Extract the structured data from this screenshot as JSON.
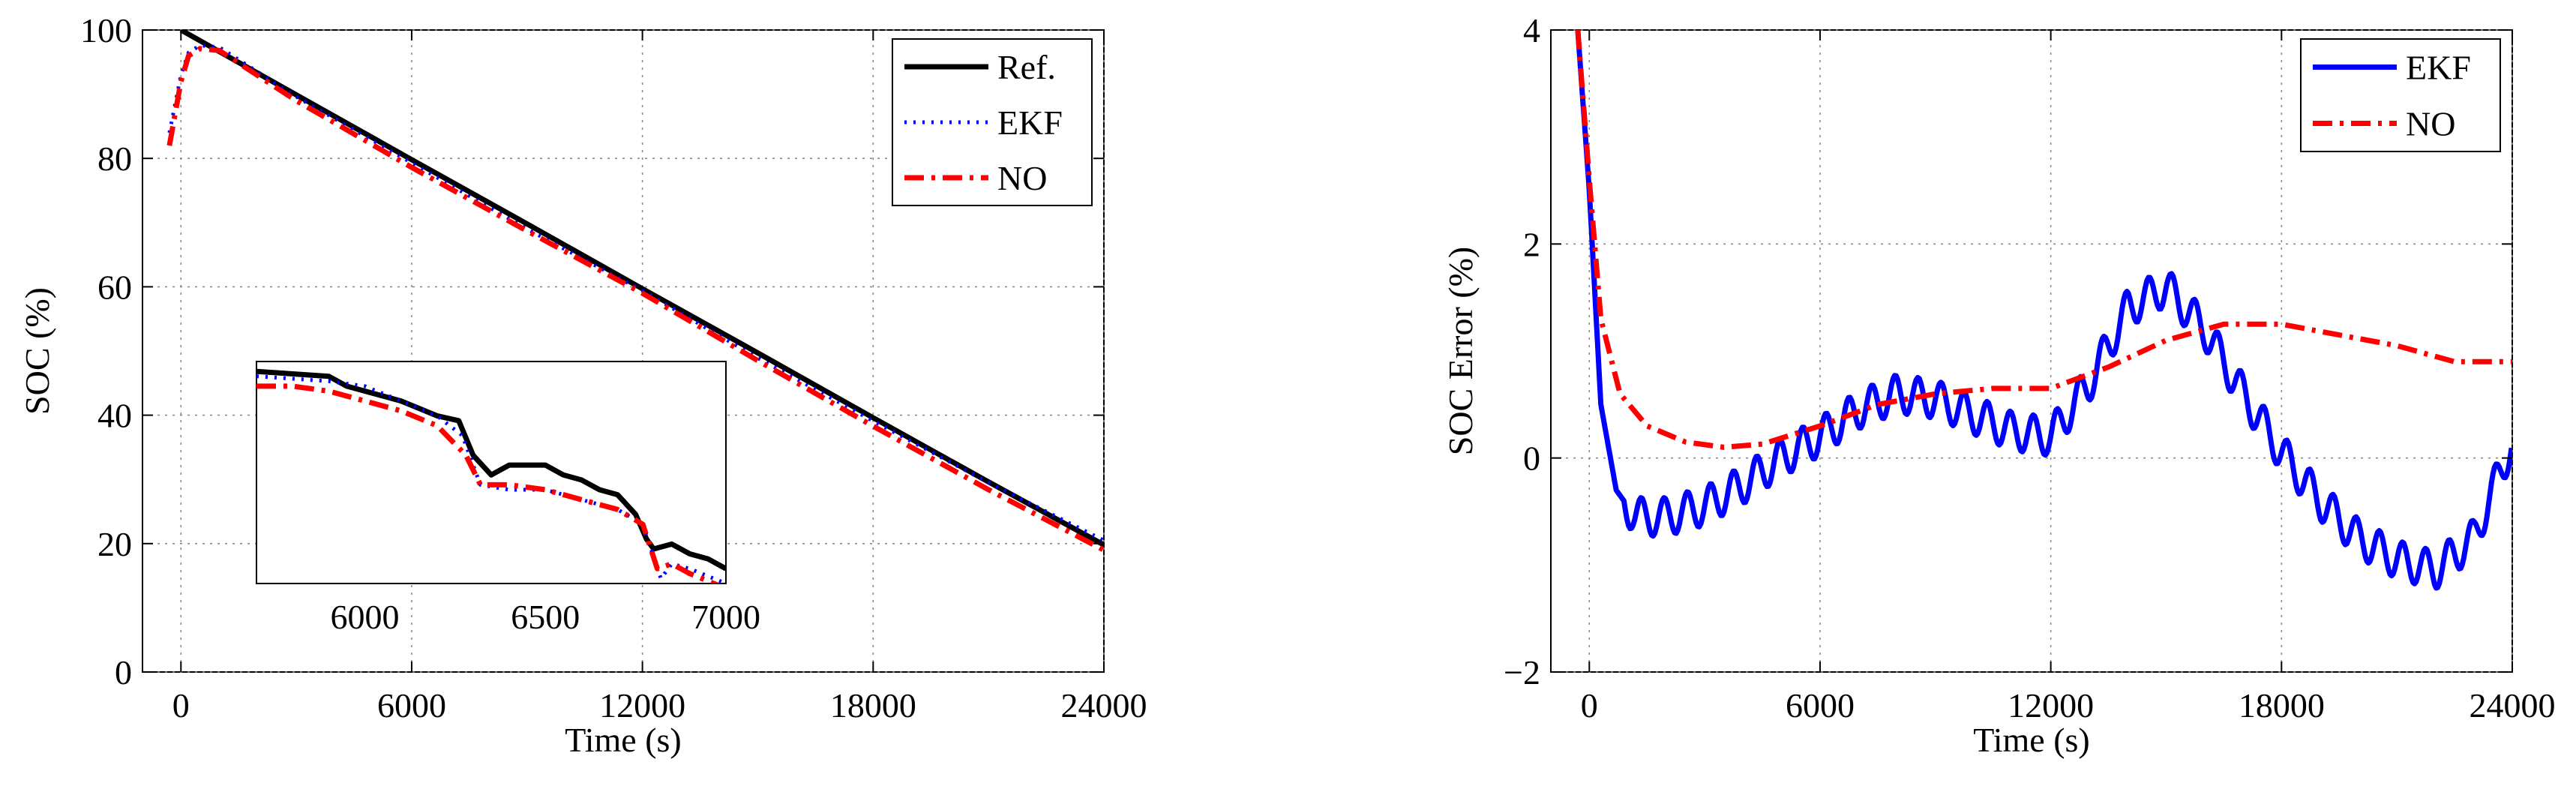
{
  "chart_data": [
    {
      "type": "line",
      "title": "",
      "xlabel": "Time (s)",
      "ylabel": "SOC (%)",
      "xlim": [
        -1000,
        24000
      ],
      "ylim": [
        0,
        100
      ],
      "xticks": [
        0,
        6000,
        12000,
        18000,
        24000
      ],
      "yticks": [
        0,
        20,
        40,
        60,
        80,
        100
      ],
      "xtick_labels": [
        "0",
        "6000",
        "12000",
        "18000",
        "24000"
      ],
      "ytick_labels": [
        "0",
        "20",
        "40",
        "60",
        "80",
        "100"
      ],
      "grid": true,
      "legend_position": "top-right",
      "series": [
        {
          "name": "Ref.",
          "color": "#000000",
          "style": "solid",
          "x": [
            0,
            3000,
            6000,
            9000,
            12000,
            15000,
            18000,
            21000,
            24000
          ],
          "y": [
            100,
            89.9,
            79.8,
            69.8,
            59.7,
            49.7,
            39.6,
            29.6,
            19.8
          ]
        },
        {
          "name": "EKF",
          "color": "#0000ff",
          "style": "dotted",
          "x": [
            -300,
            0,
            200,
            500,
            1000,
            3000,
            6000,
            9000,
            12000,
            15000,
            18000,
            21000,
            24000
          ],
          "y": [
            84,
            93,
            96.5,
            97.6,
            97.3,
            89.6,
            79.3,
            69.0,
            59.4,
            48.9,
            39.1,
            29.5,
            20.5
          ]
        },
        {
          "name": "NO",
          "color": "#ff0000",
          "style": "dashdot",
          "x": [
            -300,
            0,
            200,
            500,
            1000,
            3000,
            6000,
            9000,
            12000,
            15000,
            18000,
            21000,
            24000
          ],
          "y": [
            82,
            92,
            96,
            97.1,
            96.8,
            89.0,
            78.6,
            68.7,
            59.0,
            48.5,
            38.3,
            28.4,
            19.0
          ]
        }
      ],
      "inset": {
        "xlim": [
          5700,
          7000
        ],
        "ylim": [
          77,
          81.5
        ],
        "xticks": [
          6000,
          6500,
          7000
        ],
        "xtick_labels": [
          "6000",
          "6500",
          "7000"
        ],
        "series": [
          {
            "name": "Ref.",
            "color": "#000000",
            "x": [
              5700,
              5900,
              5950,
              6050,
              6100,
              6200,
              6260,
              6300,
              6350,
              6400,
              6500,
              6550,
              6600,
              6650,
              6700,
              6750,
              6780,
              6800,
              6850,
              6900,
              6950,
              7000
            ],
            "y": [
              81.3,
              81.2,
              81.0,
              80.8,
              80.7,
              80.4,
              80.3,
              79.6,
              79.2,
              79.4,
              79.4,
              79.2,
              79.1,
              78.9,
              78.8,
              78.4,
              77.9,
              77.7,
              77.8,
              77.6,
              77.5,
              77.3
            ]
          },
          {
            "name": "EKF",
            "color": "#0000ff",
            "x": [
              5700,
              5900,
              6000,
              6100,
              6200,
              6270,
              6320,
              6400,
              6500,
              6600,
              6700,
              6770,
              6820,
              6850,
              6900,
              7000
            ],
            "y": [
              81.2,
              81.1,
              81.0,
              80.7,
              80.4,
              80.0,
              79.0,
              78.9,
              78.9,
              78.7,
              78.5,
              78.2,
              77.1,
              77.4,
              77.3,
              77.0
            ]
          },
          {
            "name": "NO",
            "color": "#ff0000",
            "x": [
              5700,
              5800,
              5900,
              6000,
              6100,
              6200,
              6280,
              6320,
              6350,
              6400,
              6500,
              6600,
              6700,
              6770,
              6810,
              6850,
              6900,
              7000
            ],
            "y": [
              81.0,
              81.0,
              80.9,
              80.7,
              80.5,
              80.2,
              79.6,
              79.0,
              79.0,
              79.0,
              78.9,
              78.7,
              78.5,
              78.2,
              77.3,
              77.4,
              77.2,
              76.9
            ]
          }
        ]
      }
    },
    {
      "type": "line",
      "title": "",
      "xlabel": "Time (s)",
      "ylabel": "SOC Error (%)",
      "xlim": [
        -1000,
        24000
      ],
      "ylim": [
        -2,
        4
      ],
      "xticks": [
        0,
        6000,
        12000,
        18000,
        24000
      ],
      "yticks": [
        -2,
        0,
        2,
        4
      ],
      "xtick_labels": [
        "0",
        "6000",
        "12000",
        "18000",
        "24000"
      ],
      "ytick_labels": [
        "−2",
        "0",
        "2",
        "4"
      ],
      "grid": true,
      "legend_position": "top-right",
      "series": [
        {
          "name": "EKF",
          "color": "#0000ff",
          "style": "solid",
          "x": [
            -300,
            0,
            300,
            700,
            1200,
            2000,
            3000,
            4000,
            5000,
            6000,
            7000,
            8000,
            9000,
            10000,
            11000,
            12000,
            13000,
            14000,
            15000,
            16000,
            17000,
            18000,
            19000,
            20000,
            21000,
            22000,
            23000,
            24000
          ],
          "y": [
            4.0,
            2.5,
            0.5,
            -0.3,
            -0.55,
            -0.55,
            -0.45,
            -0.25,
            0,
            0.2,
            0.45,
            0.6,
            0.55,
            0.4,
            0.25,
            0.2,
            0.7,
            1.4,
            1.6,
            1.2,
            0.6,
            0.05,
            -0.4,
            -0.75,
            -0.95,
            -1.05,
            -0.75,
            0.15
          ],
          "oscillation": {
            "amplitude": 0.18,
            "period": 600
          }
        },
        {
          "name": "NO",
          "color": "#ff0000",
          "style": "dashdot",
          "x": [
            -300,
            0,
            300,
            800,
            1500,
            2500,
            3500,
            4500,
            6000,
            7500,
            9000,
            10500,
            12000,
            13500,
            15000,
            16500,
            18000,
            19500,
            21000,
            22500,
            24000
          ],
          "y": [
            4.0,
            2.6,
            1.3,
            0.6,
            0.3,
            0.15,
            0.1,
            0.13,
            0.3,
            0.5,
            0.6,
            0.65,
            0.65,
            0.85,
            1.1,
            1.25,
            1.25,
            1.15,
            1.05,
            0.9,
            0.9
          ]
        }
      ]
    }
  ]
}
